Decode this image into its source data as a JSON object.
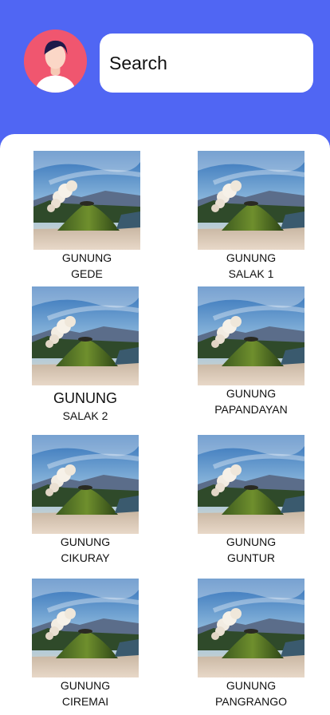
{
  "search": {
    "placeholder": "Search"
  },
  "mountains": [
    {
      "line1": "GUNUNG",
      "line2": "GEDE"
    },
    {
      "line1": "GUNUNG",
      "line2": "SALAK 1"
    },
    {
      "line1": "GUNUNG",
      "line2": "SALAK 2"
    },
    {
      "line1": "GUNUNG",
      "line2": "PAPANDAYAN"
    },
    {
      "line1": "GUNUNG",
      "line2": "CIKURAY"
    },
    {
      "line1": "GUNUNG",
      "line2": "GUNTUR"
    },
    {
      "line1": "GUNUNG",
      "line2": "CIREMAI"
    },
    {
      "line1": "GUNUNG",
      "line2": "PANGRANGO"
    }
  ],
  "colors": {
    "header": "#5066f3",
    "avatar_bg": "#f0566f",
    "panel": "#ffffff"
  }
}
